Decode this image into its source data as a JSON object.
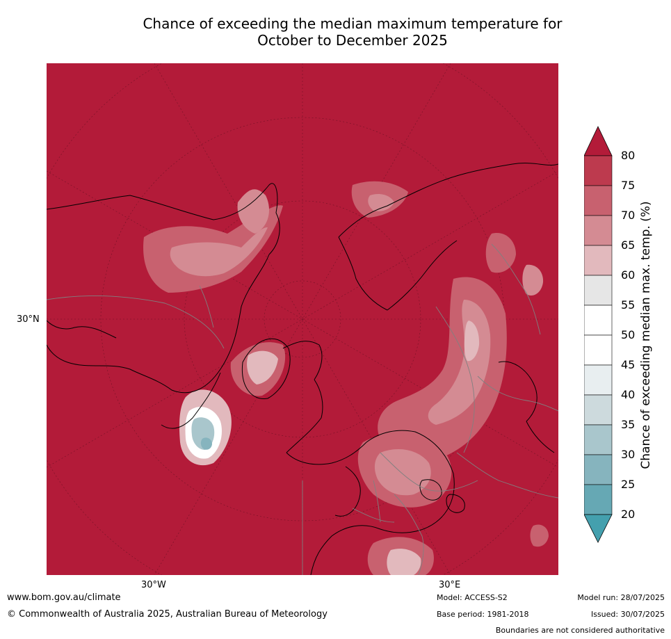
{
  "title": {
    "line1": "Chance of exceeding the median maximum temperature for",
    "line2": "October to December 2025"
  },
  "map": {
    "background_class_color": "#b31b39",
    "axis_labels": {
      "lat_30n": "30°N",
      "lon_30w": "30°W",
      "lon_30e": "30°E"
    }
  },
  "colorbar": {
    "label": "Chance of exceeding median max. temp. (%)",
    "ticks": [
      "80",
      "75",
      "70",
      "65",
      "60",
      "55",
      "50",
      "45",
      "40",
      "35",
      "30",
      "25",
      "20"
    ],
    "bins": [
      {
        "range": "75-80",
        "color": "#bd3a4e"
      },
      {
        "range": "70-75",
        "color": "#c8616f"
      },
      {
        "range": "65-70",
        "color": "#d48b93"
      },
      {
        "range": "60-65",
        "color": "#e2b9bd"
      },
      {
        "range": "55-60",
        "color": "#e6e6e6"
      },
      {
        "range": "50-55",
        "color": "#ffffff"
      },
      {
        "range": "45-50",
        "color": "#ffffff"
      },
      {
        "range": "40-45",
        "color": "#e8eef0"
      },
      {
        "range": "35-40",
        "color": "#cddadd"
      },
      {
        "range": "30-35",
        "color": "#a9c6cc"
      },
      {
        "range": "25-30",
        "color": "#86b4be"
      },
      {
        "range": "20-25",
        "color": "#66a8b4"
      }
    ],
    "over_color": "#b31b39",
    "under_color": "#44a0ae"
  },
  "footer": {
    "url": "www.bom.gov.au/climate",
    "copyright": "© Commonwealth of Australia 2025, Australian Bureau of Meteorology",
    "model": "Model: ACCESS-S2",
    "base_period": "Base period: 1981-2018",
    "model_run": "Model run: 28/07/2025",
    "issued": "Issued: 30/07/2025",
    "disclaimer": "Boundaries are not considered authoritative"
  }
}
